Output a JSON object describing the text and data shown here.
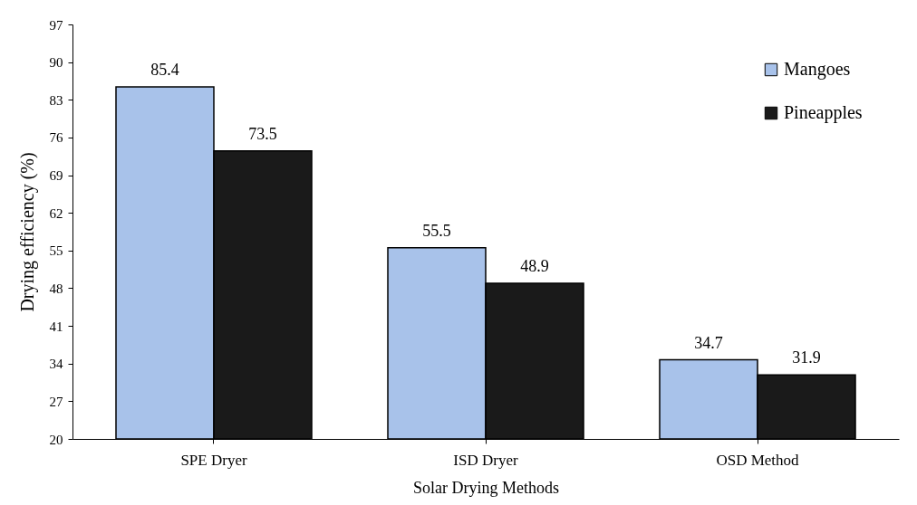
{
  "chart_data": {
    "type": "bar",
    "xlabel": "Solar Drying Methods",
    "ylabel": "Drying efficiency (%)",
    "categories": [
      "SPE Dryer",
      "ISD Dryer",
      "OSD Method"
    ],
    "series": [
      {
        "name": "Mangoes",
        "color": "#a8c2ea",
        "values": [
          85.4,
          55.5,
          34.7
        ]
      },
      {
        "name": "Pineapples",
        "color": "#1a1a1a",
        "values": [
          73.5,
          48.9,
          31.9
        ]
      }
    ],
    "ylim": [
      20,
      97
    ],
    "yticks": [
      20,
      27,
      34,
      41,
      48,
      55,
      62,
      69,
      76,
      83,
      90,
      97
    ],
    "data_labels": true,
    "grid": false,
    "legend": "top right"
  }
}
